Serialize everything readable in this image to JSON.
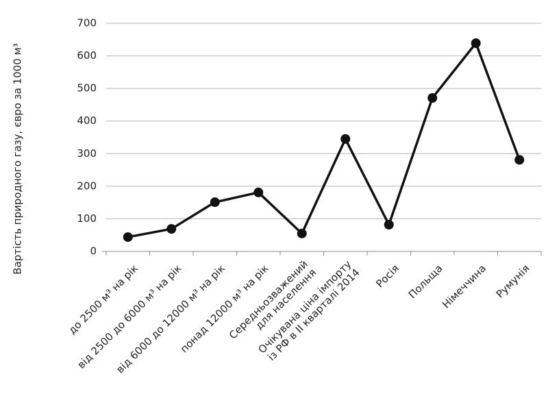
{
  "chart_data": {
    "type": "line",
    "y_label": "Вартість природного газу, євро за 1000 м³",
    "categories": [
      [
        "до 2500 м³ на рік"
      ],
      [
        "від 2500 до 6000 м³ на рік"
      ],
      [
        "від 6000 до 12000 м³  на рік"
      ],
      [
        "понад 12000 м³ на рік"
      ],
      [
        "Середньозважений",
        "для населення"
      ],
      [
        "Очікувана ціна імпорту",
        "із РФ в II кварталі 2014"
      ],
      [
        "Росія"
      ],
      [
        "Польща"
      ],
      [
        "Німеччина"
      ],
      [
        "Румунія"
      ]
    ],
    "values": [
      44,
      69,
      151,
      181,
      55,
      345,
      82,
      471,
      639,
      281
    ],
    "color": "#111111",
    "ylim": [
      0,
      700
    ],
    "yticks": [
      0,
      100,
      200,
      300,
      400,
      500,
      600,
      700
    ],
    "grid": true
  }
}
